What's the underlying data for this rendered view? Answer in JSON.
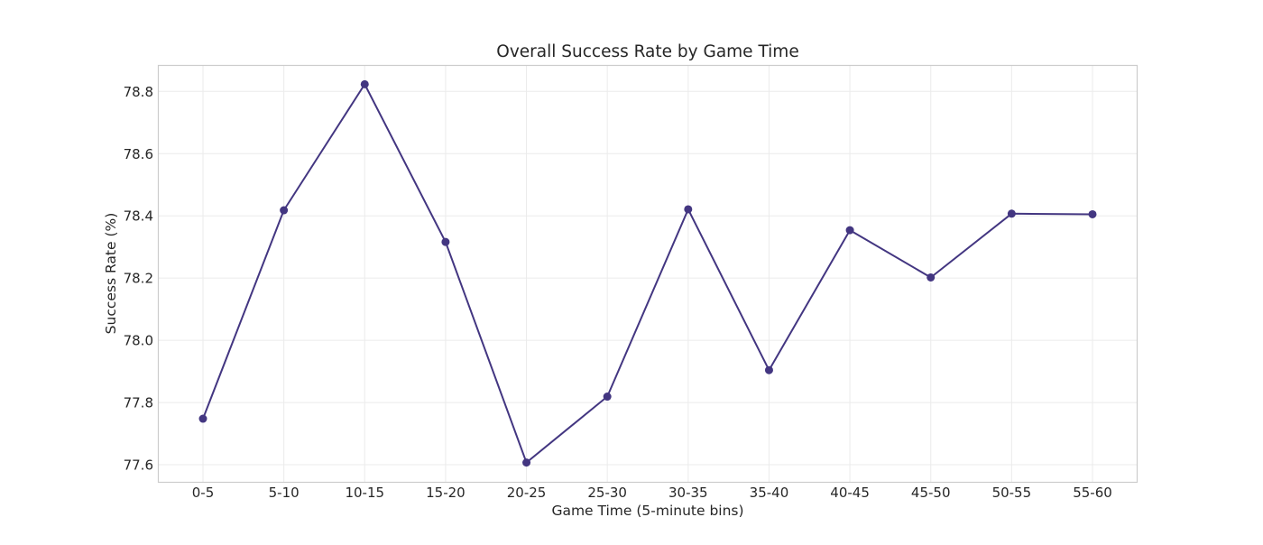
{
  "chart_data": {
    "type": "line",
    "title": "Overall Success Rate by Game Time",
    "xlabel": "Game Time (5-minute bins)",
    "ylabel": "Success Rate (%)",
    "categories": [
      "0-5",
      "5-10",
      "10-15",
      "15-20",
      "20-25",
      "25-30",
      "30-35",
      "35-40",
      "40-45",
      "45-50",
      "50-55",
      "55-60"
    ],
    "values": [
      77.748,
      78.418,
      78.823,
      78.316,
      77.607,
      77.819,
      78.421,
      77.904,
      78.354,
      78.202,
      78.407,
      78.405
    ],
    "ylim": [
      77.545,
      78.885
    ],
    "yticks": [
      77.6,
      77.8,
      78.0,
      78.2,
      78.4,
      78.6,
      78.8
    ],
    "ytick_labels": [
      "77.6",
      "77.8",
      "78.0",
      "78.2",
      "78.4",
      "78.6",
      "78.8"
    ],
    "grid": true,
    "legend": "none",
    "line_color": "#433681",
    "grid_color": "#ebebeb",
    "frame_color": "#cccccc"
  }
}
